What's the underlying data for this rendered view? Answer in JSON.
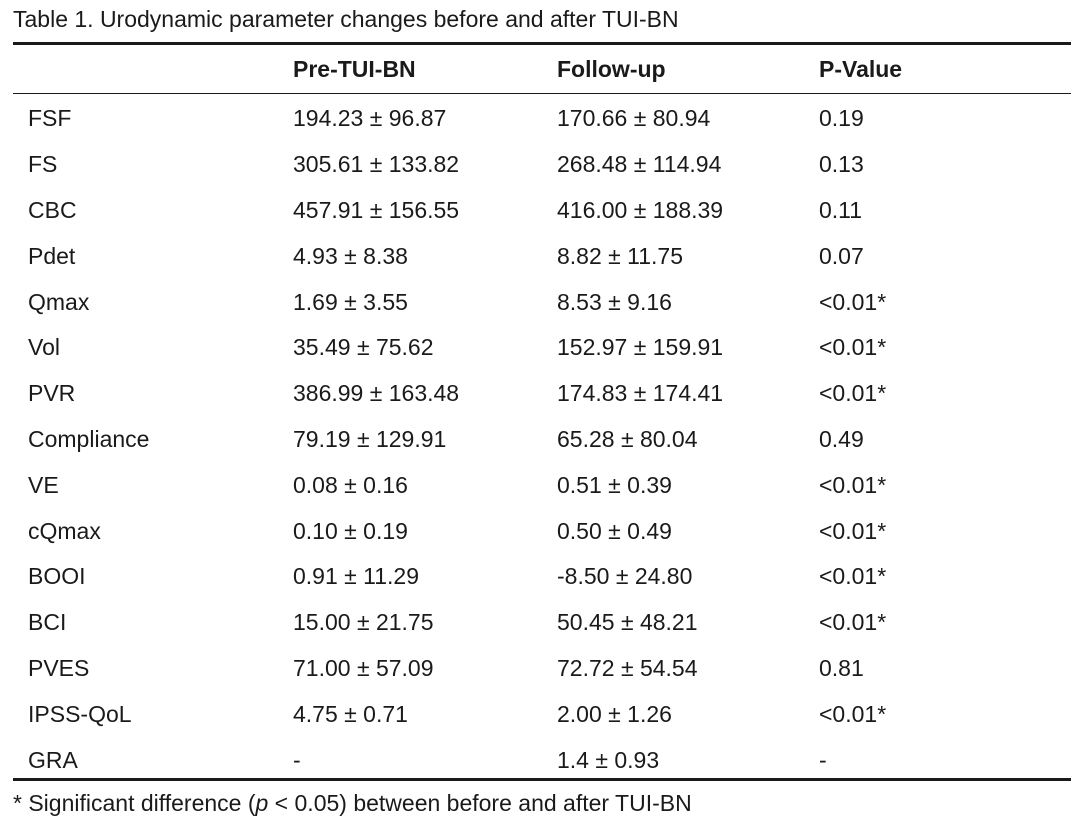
{
  "caption": "Table 1. Urodynamic parameter changes before and after TUI-BN",
  "headers": [
    "",
    "Pre-TUI-BN",
    "Follow-up",
    "P-Value"
  ],
  "rows": [
    [
      "FSF",
      "194.23 ± 96.87",
      "170.66 ± 80.94",
      "0.19"
    ],
    [
      "FS",
      "305.61 ± 133.82",
      "268.48 ± 114.94",
      "0.13"
    ],
    [
      "CBC",
      "457.91 ± 156.55",
      "416.00 ± 188.39",
      "0.11"
    ],
    [
      "Pdet",
      "4.93 ± 8.38",
      "8.82 ± 11.75",
      "0.07"
    ],
    [
      "Qmax",
      "1.69 ± 3.55",
      "8.53 ± 9.16",
      "<0.01*"
    ],
    [
      "Vol",
      "35.49 ± 75.62",
      "152.97 ± 159.91",
      "<0.01*"
    ],
    [
      "PVR",
      "386.99 ± 163.48",
      "174.83 ± 174.41",
      "<0.01*"
    ],
    [
      "Compliance",
      "79.19 ± 129.91",
      "65.28 ± 80.04",
      "0.49"
    ],
    [
      "VE",
      "0.08 ± 0.16",
      "0.51 ± 0.39",
      "<0.01*"
    ],
    [
      "cQmax",
      "0.10 ± 0.19",
      "0.50 ± 0.49",
      "<0.01*"
    ],
    [
      "BOOI",
      "0.91 ± 11.29",
      "-8.50 ± 24.80",
      "<0.01*"
    ],
    [
      "BCI",
      "15.00 ± 21.75",
      "50.45 ± 48.21",
      "<0.01*"
    ],
    [
      "PVES",
      "71.00 ± 57.09",
      "72.72 ± 54.54",
      "0.81"
    ],
    [
      "IPSS-QoL",
      "4.75 ± 0.71",
      "2.00 ± 1.26",
      "<0.01*"
    ],
    [
      "GRA",
      "-",
      "1.4 ± 0.93",
      "-"
    ]
  ],
  "footnote": {
    "prefix": "* Significant difference (",
    "italic": "p",
    "suffix": " < 0.05) between before and after TUI-BN"
  }
}
